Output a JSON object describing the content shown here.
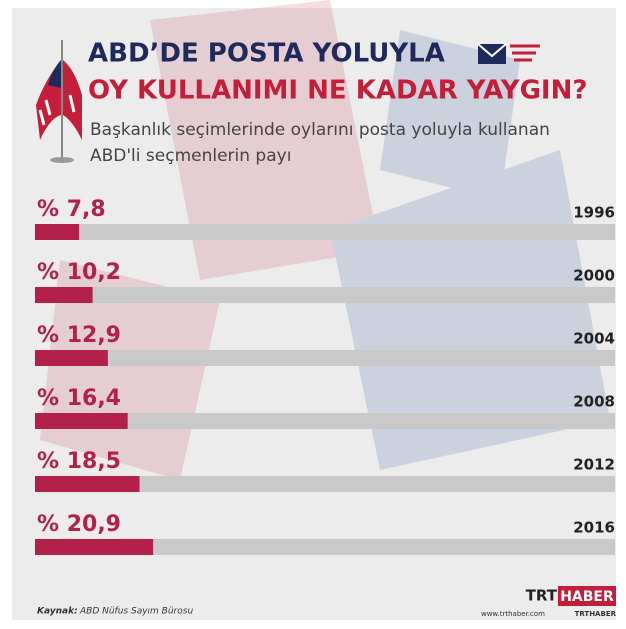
{
  "chart_data": {
    "type": "hbar",
    "title": [
      "ABD’DE POSTA YOLUYLA",
      "OY KULLANIMI NE KADAR YAYGIN?"
    ],
    "subtitle": [
      "Başkanlık seçimlerinde oylarını posta yoluyla kullanan",
      "ABD'li seçmenlerin payı"
    ],
    "categories": [
      "1996",
      "2000",
      "2004",
      "2008",
      "2012",
      "2016"
    ],
    "values": [
      7.8,
      10.2,
      12.9,
      16.4,
      18.5,
      20.9
    ],
    "value_labels": [
      "% 7,8",
      "% 10,2",
      "% 12,9",
      "% 16,4",
      "% 18,5",
      "% 20,9"
    ],
    "color": "#b3214a",
    "xlim": [
      0,
      100
    ]
  },
  "footer": {
    "source_label": "Kaynak:",
    "source": "ABD Nüfus Sayım Bürosu",
    "logo": [
      "TRT",
      "HABER"
    ],
    "website": "www.trthaber.com",
    "handle": "TRTHABER"
  }
}
